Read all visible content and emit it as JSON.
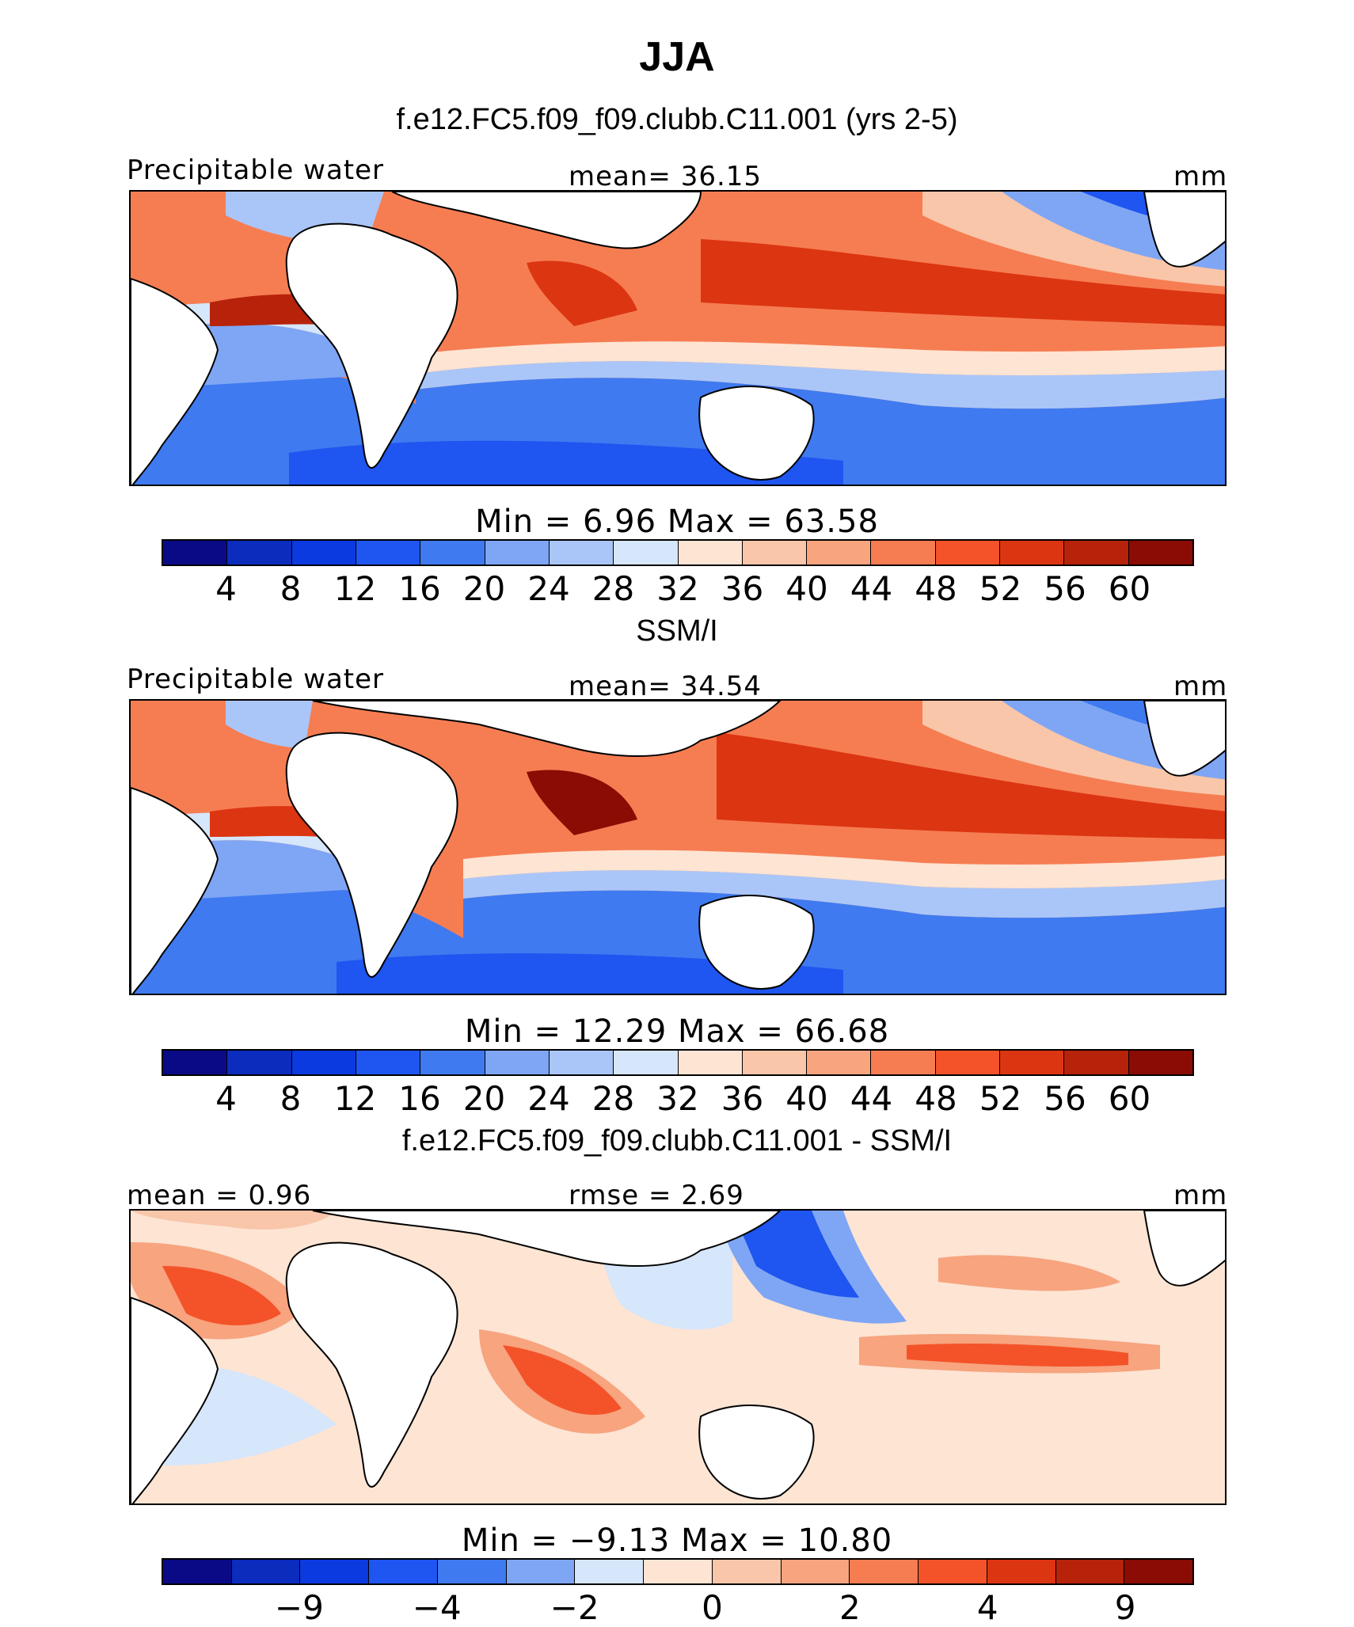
{
  "title": "JJA",
  "chart_data": [
    {
      "type": "heatmap",
      "title": "f.e12.FC5.f09_f09.clubb.C11.001 (yrs 2-5)",
      "variable": "Precipitable water",
      "stat": "mean=  36.15",
      "units": "mm",
      "min": 6.96,
      "max": 63.58,
      "min_label": "Min =    6.96 Max =   63.58",
      "levels": [
        4,
        8,
        12,
        16,
        20,
        24,
        28,
        32,
        36,
        40,
        44,
        48,
        52,
        56,
        60
      ],
      "tick_labels": [
        "4",
        "8",
        "12",
        "16",
        "20",
        "24",
        "28",
        "32",
        "36",
        "40",
        "44",
        "48",
        "52",
        "56",
        "60"
      ]
    },
    {
      "type": "heatmap",
      "title": "SSM/I",
      "variable": "Precipitable water",
      "stat": "mean=  34.54",
      "units": "mm",
      "min": 12.29,
      "max": 66.68,
      "min_label": "Min =  12.29 Max =   66.68",
      "levels": [
        4,
        8,
        12,
        16,
        20,
        24,
        28,
        32,
        36,
        40,
        44,
        48,
        52,
        56,
        60
      ],
      "tick_labels": [
        "4",
        "8",
        "12",
        "16",
        "20",
        "24",
        "28",
        "32",
        "36",
        "40",
        "44",
        "48",
        "52",
        "56",
        "60"
      ]
    },
    {
      "type": "heatmap",
      "title": "f.e12.FC5.f09_f09.clubb.C11.001 - SSM/I",
      "variable": "mean =   0.96",
      "stat": "rmse =   2.69",
      "units": "mm",
      "min": -9.13,
      "max": 10.8,
      "min_label": "Min =  −9.13 Max =   10.80",
      "levels": [
        -9,
        -6,
        -4,
        -3,
        -2,
        -1,
        0,
        1,
        2,
        3,
        4,
        6,
        9
      ],
      "tick_labels": [
        "−9",
        "−4",
        "−2",
        "0",
        "2",
        "4",
        "9"
      ]
    }
  ],
  "colorbar": [
    "#0a0a86",
    "#0b2cbd",
    "#0a3ae0",
    "#1f55f0",
    "#3f7af0",
    "#7fa6f5",
    "#aac6f8",
    "#d6e6fb",
    "#fde4d3",
    "#f9c6aa",
    "#f7a47f",
    "#f67d52",
    "#f4532a",
    "#dc3512",
    "#b6230a",
    "#8a0c04"
  ]
}
